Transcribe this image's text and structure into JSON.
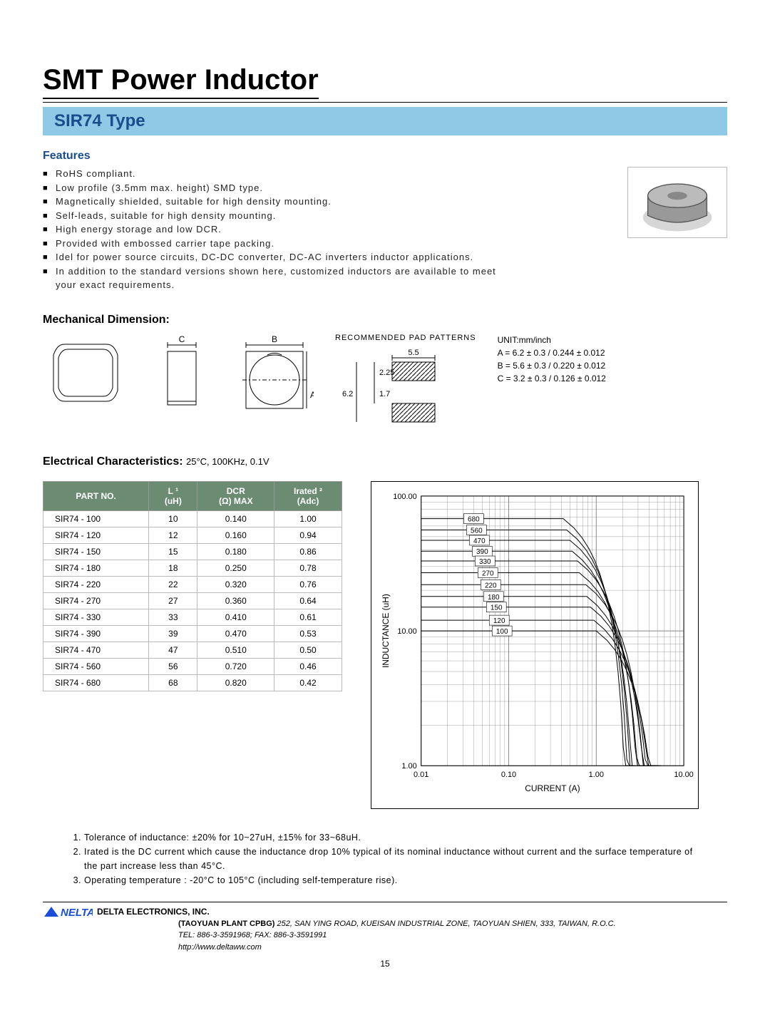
{
  "title": "SMT Power Inductor",
  "type_label": "SIR74 Type",
  "features_head": "Features",
  "features": [
    "RoHS compliant.",
    "Low profile (3.5mm max. height) SMD type.",
    "Magnetically shielded, suitable for high density mounting.",
    "Self-leads, suitable for high density mounting.",
    "High energy storage and low DCR.",
    "Provided with embossed carrier tape packing.",
    "Idel for power source circuits, DC-DC converter, DC-AC inverters inductor applications.",
    "In addition to the standard versions shown here, customized inductors are available to meet your exact requirements."
  ],
  "mech_head": "Mechanical Dimension:",
  "pad_label": "RECOMMENDED PAD PATTERNS",
  "mech_labels": {
    "C": "C",
    "B": "B",
    "A": "A",
    "w": "5.5",
    "h1": "2.25",
    "w2": "6.2",
    "gap": "1.7"
  },
  "dim_unit": "UNIT:mm/inch",
  "dims": [
    "A = 6.2 ± 0.3 / 0.244 ± 0.012",
    "B = 5.6 ± 0.3 / 0.220 ± 0.012",
    "C = 3.2 ± 0.3 / 0.126 ± 0.012"
  ],
  "elec_head": "Electrical Characteristics:",
  "elec_cond": "25°C, 100KHz, 0.1V",
  "table": {
    "headers": [
      "PART NO.",
      "L ¹\n(uH)",
      "DCR\n(Ω) MAX",
      "Irated ²\n(Adc)"
    ],
    "rows": [
      [
        "SIR74 - 100",
        "10",
        "0.140",
        "1.00"
      ],
      [
        "SIR74 - 120",
        "12",
        "0.160",
        "0.94"
      ],
      [
        "SIR74 - 150",
        "15",
        "0.180",
        "0.86"
      ],
      [
        "SIR74 - 180",
        "18",
        "0.250",
        "0.78"
      ],
      [
        "SIR74 - 220",
        "22",
        "0.320",
        "0.76"
      ],
      [
        "SIR74 - 270",
        "27",
        "0.360",
        "0.64"
      ],
      [
        "SIR74 - 330",
        "33",
        "0.410",
        "0.61"
      ],
      [
        "SIR74 - 390",
        "39",
        "0.470",
        "0.53"
      ],
      [
        "SIR74 - 470",
        "47",
        "0.510",
        "0.50"
      ],
      [
        "SIR74 - 560",
        "56",
        "0.720",
        "0.46"
      ],
      [
        "SIR74 - 680",
        "68",
        "0.820",
        "0.42"
      ]
    ]
  },
  "chart": {
    "type": "line-loglog-saturation",
    "xlabel": "CURRENT (A)",
    "ylabel": "INDUCTANCE (uH)",
    "x_ticks": [
      "0.01",
      "0.10",
      "1.00",
      "10.00"
    ],
    "y_ticks": [
      "1.00",
      "10.00",
      "100.00"
    ],
    "x_range_log10": [
      -2,
      1
    ],
    "y_range_log10": [
      0,
      2
    ],
    "series_labels": [
      "680",
      "560",
      "470",
      "390",
      "330",
      "270",
      "220",
      "180",
      "150",
      "120",
      "100"
    ],
    "series_values_uH": [
      68,
      56,
      47,
      39,
      33,
      27,
      22,
      18,
      15,
      12,
      10
    ],
    "drop_at_A": [
      0.42,
      0.46,
      0.5,
      0.53,
      0.61,
      0.64,
      0.76,
      0.78,
      0.86,
      0.94,
      1.0
    ],
    "grid_color": "#888",
    "line_color": "#000",
    "background": "#ffffff",
    "label_box_fill": "#ffffff",
    "label_box_stroke": "#000",
    "font_size_label": 10,
    "font_size_axis": 12
  },
  "notes_items": [
    "Tolerance of inductance: ±20% for 10~27uH, ±15% for 33~68uH.",
    "Irated is the DC current which cause the inductance drop 10% typical of its nominal inductance without current and the surface temperature of the part increase less than 45°C.",
    "Operating temperature : -20°C to 105°C (including self-temperature rise)."
  ],
  "footer": {
    "company": "DELTA ELECTRONICS, INC.",
    "plant": "(TAOYUAN PLANT CPBG)",
    "addr": "252, SAN YING ROAD, KUEISAN INDUSTRIAL ZONE, TAOYUAN SHIEN, 333, TAIWAN, R.O.C.",
    "tel": "TEL: 886-3-3591968; FAX: 886-3-3591991",
    "url": "http://www.deltaww.com"
  },
  "page_number": "15",
  "colors": {
    "banner_bg": "#8ecae6",
    "banner_text": "#1a4d8c",
    "table_header_bg": "#6b8b73",
    "table_header_text": "#ffffff"
  }
}
